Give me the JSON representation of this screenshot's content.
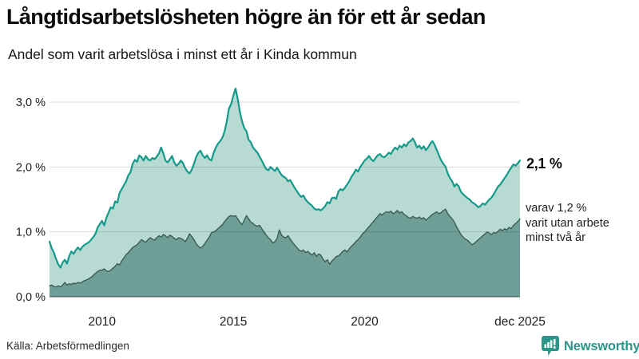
{
  "header": {
    "title": "Långtidsarbetslösheten högre än för ett år sedan",
    "subtitle": "Andel som varit arbetslösa i minst ett år i Kinda kommun"
  },
  "chart_data": {
    "type": "area",
    "title": "Långtidsarbetslösheten högre än för ett år sedan",
    "subtitle": "Andel som varit arbetslösa i minst ett år i Kinda kommun",
    "x_unit": "month",
    "x_start": 2008.0,
    "x_end": 2025.917,
    "xlim": [
      2008.0,
      2025.917
    ],
    "ylim": [
      0,
      3.4
    ],
    "grid": "horizontal",
    "legend_position": "none",
    "y_ticks": [
      {
        "label": "0,0 %",
        "value": 0
      },
      {
        "label": "1,0 %",
        "value": 1
      },
      {
        "label": "2,0 %",
        "value": 2
      },
      {
        "label": "3,0 %",
        "value": 3
      }
    ],
    "x_labels": [
      {
        "label": "2010",
        "year": 2010.0
      },
      {
        "label": "2015",
        "year": 2015.0
      },
      {
        "label": "2020",
        "year": 2020.0
      },
      {
        "label": "dec 2025",
        "year": 2025.917
      }
    ],
    "series": [
      {
        "id": "minst-ett-ar",
        "name": "Andel som varit arbetslösa i minst ett år",
        "color": "#15998a",
        "fill": "#b7dbd3",
        "stroke_width": 2.2,
        "latest_value_pct": 2.1,
        "values": [
          0.85,
          0.75,
          0.68,
          0.58,
          0.5,
          0.45,
          0.53,
          0.57,
          0.51,
          0.63,
          0.7,
          0.66,
          0.72,
          0.76,
          0.72,
          0.77,
          0.8,
          0.82,
          0.84,
          0.88,
          0.92,
          0.97,
          1.07,
          1.12,
          1.17,
          1.1,
          1.22,
          1.3,
          1.38,
          1.36,
          1.47,
          1.45,
          1.6,
          1.66,
          1.72,
          1.78,
          1.87,
          1.92,
          2.05,
          2.11,
          2.08,
          2.18,
          2.15,
          2.1,
          2.17,
          2.12,
          2.1,
          2.14,
          2.12,
          2.16,
          2.21,
          2.3,
          2.21,
          2.1,
          2.07,
          2.12,
          2.17,
          2.07,
          2.02,
          2.05,
          2.1,
          2.06,
          1.98,
          1.93,
          1.9,
          1.96,
          2.05,
          2.15,
          2.22,
          2.25,
          2.18,
          2.14,
          2.18,
          2.12,
          2.1,
          2.22,
          2.3,
          2.36,
          2.4,
          2.45,
          2.55,
          2.7,
          2.9,
          2.97,
          3.1,
          3.21,
          3.05,
          2.85,
          2.7,
          2.6,
          2.55,
          2.42,
          2.38,
          2.3,
          2.26,
          2.22,
          2.16,
          2.1,
          2.03,
          1.97,
          1.95,
          2.0,
          1.97,
          1.94,
          1.99,
          1.93,
          1.88,
          1.85,
          1.83,
          1.78,
          1.8,
          1.74,
          1.68,
          1.63,
          1.58,
          1.54,
          1.56,
          1.5,
          1.46,
          1.43,
          1.4,
          1.36,
          1.34,
          1.35,
          1.33,
          1.36,
          1.4,
          1.46,
          1.44,
          1.52,
          1.53,
          1.51,
          1.62,
          1.66,
          1.64,
          1.68,
          1.73,
          1.78,
          1.85,
          1.9,
          1.96,
          1.93,
          2.0,
          2.05,
          2.1,
          2.13,
          2.17,
          2.12,
          2.09,
          2.14,
          2.18,
          2.2,
          2.16,
          2.15,
          2.18,
          2.22,
          2.2,
          2.26,
          2.3,
          2.27,
          2.33,
          2.3,
          2.35,
          2.32,
          2.38,
          2.4,
          2.44,
          2.38,
          2.3,
          2.33,
          2.28,
          2.32,
          2.26,
          2.3,
          2.36,
          2.4,
          2.34,
          2.26,
          2.18,
          2.1,
          2.05,
          2.0,
          1.9,
          1.83,
          1.78,
          1.7,
          1.74,
          1.7,
          1.62,
          1.58,
          1.55,
          1.52,
          1.5,
          1.46,
          1.44,
          1.41,
          1.38,
          1.4,
          1.44,
          1.42,
          1.46,
          1.5,
          1.53,
          1.58,
          1.64,
          1.7,
          1.73,
          1.78,
          1.83,
          1.88,
          1.94,
          1.99,
          2.04,
          2.02,
          2.06,
          2.1
        ]
      },
      {
        "id": "minst-tva-ar",
        "name": "varav utan arbete minst två år",
        "color": "#3d5b55",
        "fill": "#6f9e97",
        "stroke_width": 1.4,
        "latest_value_pct": 1.2,
        "values": [
          0.17,
          0.18,
          0.16,
          0.15,
          0.17,
          0.15,
          0.18,
          0.22,
          0.18,
          0.2,
          0.19,
          0.21,
          0.2,
          0.22,
          0.21,
          0.23,
          0.25,
          0.26,
          0.28,
          0.3,
          0.33,
          0.36,
          0.39,
          0.41,
          0.41,
          0.43,
          0.4,
          0.39,
          0.41,
          0.44,
          0.47,
          0.51,
          0.49,
          0.55,
          0.6,
          0.65,
          0.68,
          0.72,
          0.76,
          0.78,
          0.8,
          0.84,
          0.88,
          0.86,
          0.84,
          0.88,
          0.91,
          0.89,
          0.87,
          0.91,
          0.94,
          0.92,
          0.96,
          0.94,
          0.91,
          0.95,
          0.93,
          0.9,
          0.88,
          0.91,
          0.9,
          0.88,
          0.85,
          0.9,
          0.97,
          0.93,
          0.88,
          0.82,
          0.78,
          0.75,
          0.78,
          0.82,
          0.87,
          0.92,
          0.99,
          1.0,
          1.02,
          1.05,
          1.08,
          1.11,
          1.16,
          1.2,
          1.24,
          1.25,
          1.24,
          1.25,
          1.2,
          1.15,
          1.11,
          1.18,
          1.25,
          1.2,
          1.15,
          1.13,
          1.1,
          1.09,
          1.1,
          1.05,
          1.0,
          0.95,
          0.91,
          0.88,
          0.83,
          0.85,
          0.9,
          1.03,
          0.95,
          0.92,
          0.91,
          0.94,
          0.89,
          0.84,
          0.8,
          0.76,
          0.72,
          0.7,
          0.72,
          0.68,
          0.7,
          0.67,
          0.64,
          0.68,
          0.62,
          0.66,
          0.64,
          0.58,
          0.54,
          0.57,
          0.5,
          0.55,
          0.58,
          0.62,
          0.63,
          0.66,
          0.7,
          0.72,
          0.69,
          0.74,
          0.78,
          0.81,
          0.85,
          0.88,
          0.92,
          0.97,
          1.0,
          1.04,
          1.08,
          1.12,
          1.16,
          1.2,
          1.24,
          1.28,
          1.26,
          1.29,
          1.31,
          1.3,
          1.32,
          1.28,
          1.3,
          1.33,
          1.29,
          1.31,
          1.27,
          1.25,
          1.22,
          1.21,
          1.24,
          1.22,
          1.21,
          1.23,
          1.2,
          1.22,
          1.18,
          1.21,
          1.24,
          1.27,
          1.29,
          1.31,
          1.28,
          1.3,
          1.33,
          1.35,
          1.28,
          1.24,
          1.2,
          1.15,
          1.08,
          1.02,
          0.96,
          0.92,
          0.89,
          0.87,
          0.84,
          0.8,
          0.82,
          0.85,
          0.88,
          0.91,
          0.94,
          0.97,
          1.0,
          0.98,
          0.96,
          0.99,
          0.98,
          1.01,
          1.04,
          1.02,
          1.05,
          1.03,
          1.07,
          1.05,
          1.1,
          1.13,
          1.16,
          1.2
        ]
      }
    ],
    "annotations": {
      "latest_total": "2,1 %",
      "latest_two_years": "varav 1,2 %\nvarit utan arbete\nminst två år"
    }
  },
  "footer": {
    "source": "Källa: Arbetsförmedlingen",
    "brand": "Newsworthy"
  },
  "colors": {
    "accent_teal": "#15998a",
    "light_fill": "#b7dbd3",
    "dark_fill": "#6f9e97",
    "dark_line": "#3d5b55",
    "brand_teal": "#2b958a",
    "gridline": "#dbdbdb",
    "text": "#1d1d1d"
  }
}
